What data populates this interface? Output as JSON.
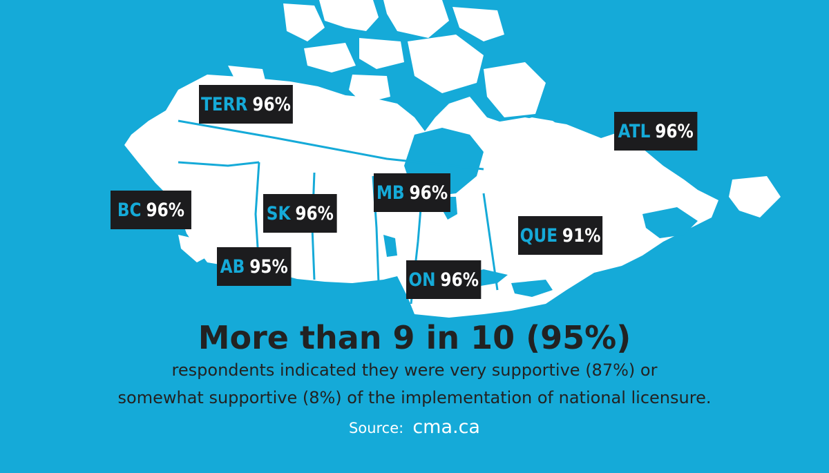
{
  "colors": {
    "background": "#15aad8",
    "land": "#ffffff",
    "label_background": "#1c1c1e",
    "label_code": "#15aad8",
    "label_value": "#ffffff",
    "headline_text": "#222222",
    "source_text": "#ffffff"
  },
  "map": {
    "regions": [
      {
        "code": "TERR",
        "value": "96%"
      },
      {
        "code": "ATL",
        "value": "96%"
      },
      {
        "code": "BC",
        "value": "96%"
      },
      {
        "code": "SK",
        "value": "96%"
      },
      {
        "code": "MB",
        "value": "96%"
      },
      {
        "code": "QUE",
        "value": "91%"
      },
      {
        "code": "AB",
        "value": "95%"
      },
      {
        "code": "ON",
        "value": "96%"
      }
    ]
  },
  "headline": "More than 9 in 10 (95%)",
  "subtext_line1": "respondents indicated they were very supportive (87%) or",
  "subtext_line2": "somewhat supportive (8%) of the implementation of national licensure.",
  "source": {
    "label": "Source:",
    "url": "cma.ca"
  }
}
